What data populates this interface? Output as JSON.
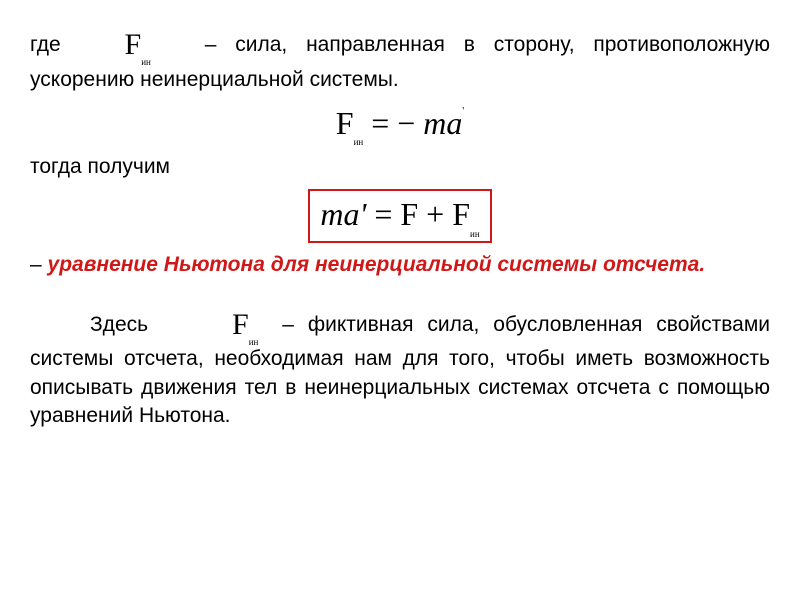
{
  "colors": {
    "text": "#000000",
    "background": "#ffffff",
    "accent": "#d01818",
    "box_border": "#d01818"
  },
  "typography": {
    "body_font": "Arial",
    "body_size_pt": 16,
    "formula_font": "Times New Roman",
    "formula_size_pt": 24,
    "sub_size_pt": 7
  },
  "p1": {
    "before": "где",
    "sym_F": "F",
    "sym_sub": "ин",
    "after": "– сила, направленная в сторону, противоположную ускорению неинерциальной системы."
  },
  "eq1": {
    "lhs_F": "F",
    "lhs_sub": "ин",
    "eq": " = ",
    "minus": "− ",
    "m": "m",
    "a": "a",
    "star": "'"
  },
  "p2": {
    "text": " тогда получим"
  },
  "eq2": {
    "m": "m",
    "a_prime": "a'",
    "eq": " = ",
    "F1": "F",
    "plus": " + ",
    "F2": "F",
    "F2_sub": "ин"
  },
  "p3": {
    "dash": "– ",
    "emph": "уравнение Ньютона для неинерциальной системы отсчета."
  },
  "p4": {
    "before": "Здесь",
    "sym_F": "F",
    "sym_sub": "ин",
    "after": "– фиктивная сила, обусловленная свойствами системы отсчета, необходимая нам для того, чтобы иметь возможность описывать движения тел в неинерциальных системах отсчета с помощью уравнений Ньютона."
  }
}
